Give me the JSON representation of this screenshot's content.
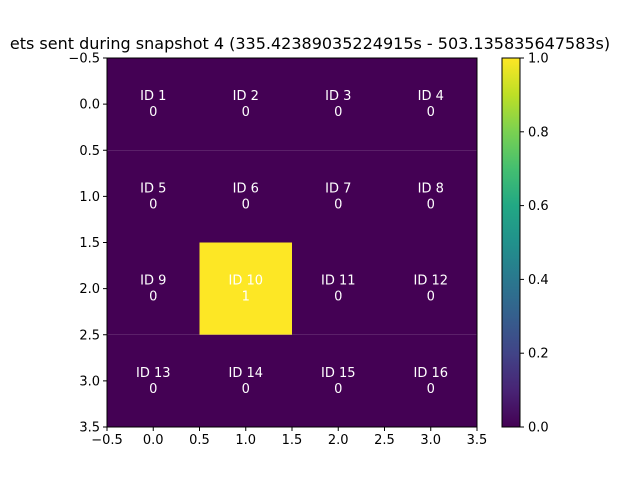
{
  "chart_data": {
    "type": "heatmap",
    "title": "ets sent during snapshot 4 (335.42389035224915s - 503.135835647583s)",
    "xlabel": "",
    "ylabel": "",
    "xlim": [
      -0.5,
      3.5
    ],
    "ylim": [
      3.5,
      -0.5
    ],
    "xticks": [
      "−0.5",
      "0.0",
      "0.5",
      "1.0",
      "1.5",
      "2.0",
      "2.5",
      "3.0",
      "3.5"
    ],
    "yticks": [
      "−0.5",
      "0.0",
      "0.5",
      "1.0",
      "1.5",
      "2.0",
      "2.5",
      "3.0",
      "3.5"
    ],
    "colormap": "viridis",
    "low_color": "#440154",
    "high_color": "#fde725",
    "text_color": "#ffffff",
    "colorbar": {
      "range": [
        0.0,
        1.0
      ],
      "ticks": [
        "0.0",
        "0.2",
        "0.4",
        "0.6",
        "0.8",
        "1.0"
      ]
    },
    "grid": false,
    "cells": [
      [
        {
          "id": "ID 1",
          "value": 0
        },
        {
          "id": "ID 2",
          "value": 0
        },
        {
          "id": "ID 3",
          "value": 0
        },
        {
          "id": "ID 4",
          "value": 0
        }
      ],
      [
        {
          "id": "ID 5",
          "value": 0
        },
        {
          "id": "ID 6",
          "value": 0
        },
        {
          "id": "ID 7",
          "value": 0
        },
        {
          "id": "ID 8",
          "value": 0
        }
      ],
      [
        {
          "id": "ID 9",
          "value": 0
        },
        {
          "id": "ID 10",
          "value": 1
        },
        {
          "id": "ID 11",
          "value": 0
        },
        {
          "id": "ID 12",
          "value": 0
        }
      ],
      [
        {
          "id": "ID 13",
          "value": 0
        },
        {
          "id": "ID 14",
          "value": 0
        },
        {
          "id": "ID 15",
          "value": 0
        },
        {
          "id": "ID 16",
          "value": 0
        }
      ]
    ]
  }
}
